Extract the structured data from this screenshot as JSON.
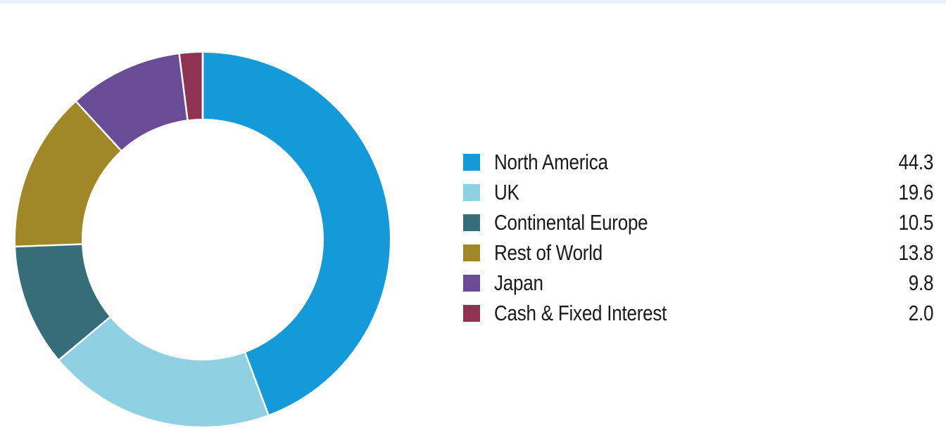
{
  "page": {
    "background_color": "#FFFFFF",
    "top_strip_color": "#E8F2FA"
  },
  "chart_data": {
    "type": "pie",
    "subtype": "donut",
    "title": "",
    "legend_position": "right",
    "start_angle_deg": 0,
    "direction": "clockwise",
    "inner_radius_ratio": 0.645,
    "separator_color": "#FFFFFF",
    "categories": [
      "North America",
      "UK",
      "Continental Europe",
      "Rest of World",
      "Japan",
      "Cash & Fixed Interest"
    ],
    "values": [
      44.3,
      19.6,
      10.5,
      13.8,
      9.8,
      2.0
    ],
    "segments": [
      {
        "label": "North America",
        "value": 44.3,
        "value_display": "44.3",
        "color": "#149AD9"
      },
      {
        "label": "UK",
        "value": 19.6,
        "value_display": "19.6",
        "color": "#8FD1E2"
      },
      {
        "label": "Continental Europe",
        "value": 10.5,
        "value_display": "10.5",
        "color": "#356E79"
      },
      {
        "label": "Rest of World",
        "value": 13.8,
        "value_display": "13.8",
        "color": "#A08826"
      },
      {
        "label": "Japan",
        "value": 9.8,
        "value_display": "9.8",
        "color": "#6A4C96"
      },
      {
        "label": "Cash & Fixed Interest",
        "value": 2.0,
        "value_display": "2.0",
        "color": "#8E3452"
      }
    ]
  },
  "legend": {
    "text_color": "#1A1A1A"
  }
}
